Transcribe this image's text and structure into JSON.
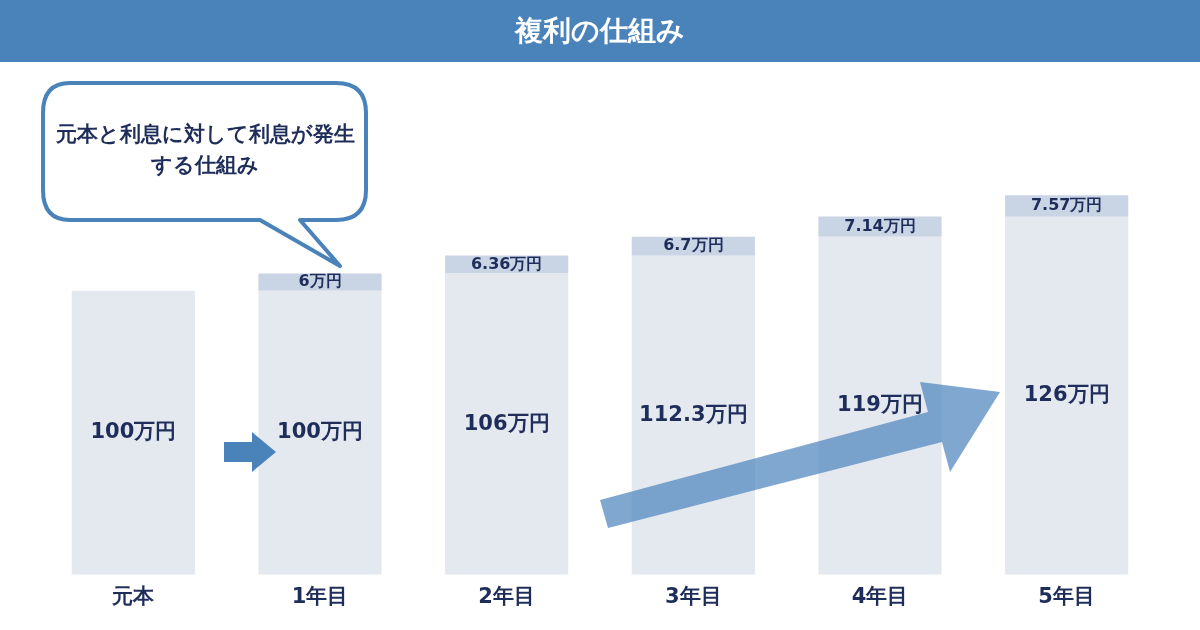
{
  "chart_data": {
    "type": "bar",
    "title": "複利の仕組み",
    "stacked": true,
    "grid": false,
    "legend": false,
    "tick_labels": "x",
    "annotations": [
      "元本と利息に対して利息が発生する仕組み"
    ],
    "categories": [
      "元本",
      "1年目",
      "2年目",
      "3年目",
      "4年目",
      "5年目"
    ],
    "series": [
      {
        "color": "#e4e9f0",
        "values": [
          100,
          100,
          106,
          112.3,
          119,
          126
        ],
        "value_labels": [
          "100万円",
          "100万円",
          "106万円",
          "112.3万円",
          "119万円",
          "126万円"
        ]
      },
      {
        "color": "#c9d4e4",
        "values": [
          null,
          6,
          6.36,
          6.7,
          7.14,
          7.57
        ],
        "value_labels": [
          null,
          "6万円",
          "6.36万円",
          "6.7万円",
          "7.14万円",
          "7.57万円"
        ]
      }
    ]
  }
}
